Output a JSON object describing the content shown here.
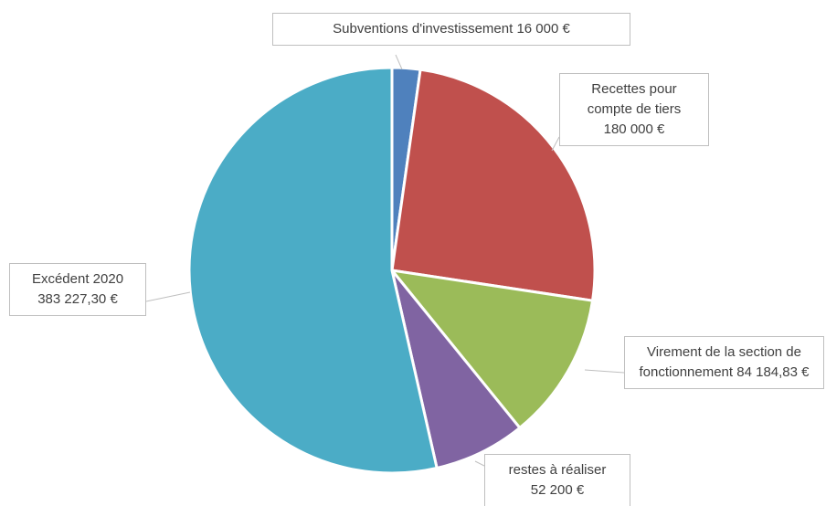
{
  "chart_data": {
    "type": "pie",
    "categories": [
      "Subventions d'investissement",
      "Recettes pour compte de tiers",
      "Virement de la section de fonctionnement",
      "restes à réaliser",
      "Excédent 2020"
    ],
    "values": [
      16000,
      180000,
      84184.83,
      52200,
      383227.3
    ],
    "value_labels": [
      "16 000 €",
      "180 000 €",
      "84 184,83 €",
      "52 200 €",
      "383 227,30 €"
    ],
    "colors": [
      "#4f81bd",
      "#c0504d",
      "#9bbb59",
      "#8064a2",
      "#4bacc6"
    ]
  }
}
